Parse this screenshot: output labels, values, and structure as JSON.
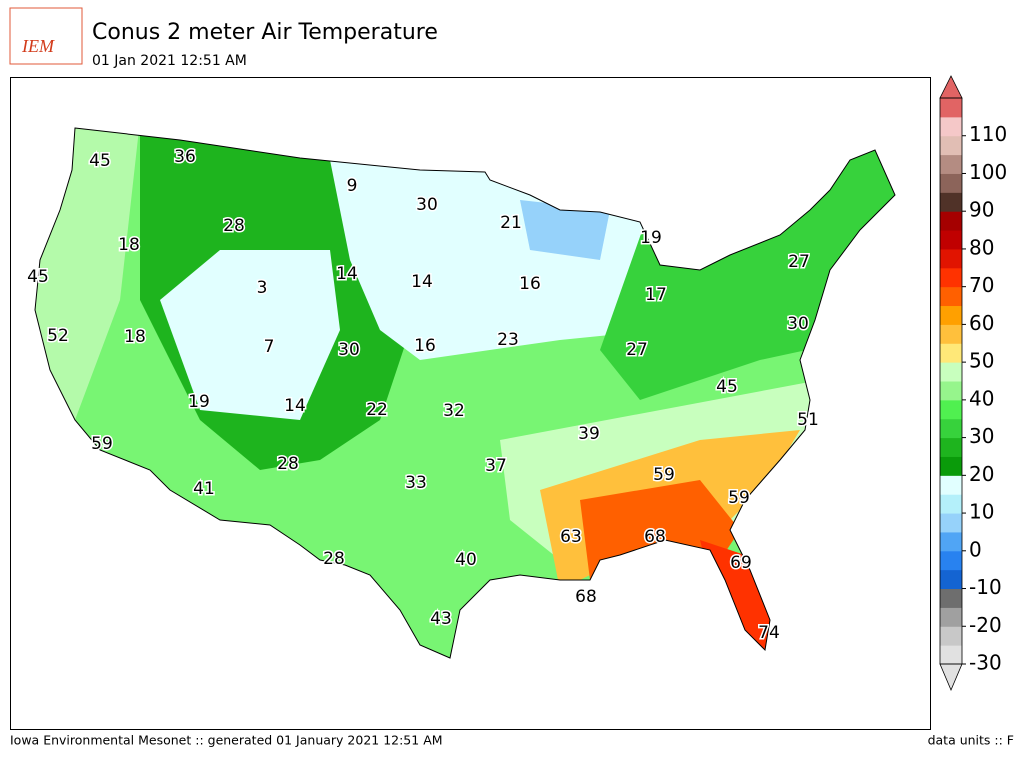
{
  "header": {
    "title": "Conus 2 meter Air Temperature",
    "subtitle": "01 Jan 2021 12:51 AM",
    "logo": "IEM"
  },
  "map": {
    "labels": [
      45,
      36,
      9,
      30,
      21,
      19,
      28,
      18,
      45,
      14,
      14,
      16,
      3,
      27,
      17,
      52,
      18,
      7,
      30,
      16,
      23,
      27,
      30,
      45,
      19,
      14,
      22,
      32,
      39,
      51,
      59,
      28,
      41,
      33,
      37,
      59,
      59,
      63,
      68,
      28,
      40,
      69,
      68,
      43,
      74
    ]
  },
  "colorbar": {
    "range": [
      -30,
      120
    ],
    "ticks": [
      -30,
      -20,
      -10,
      0,
      10,
      20,
      30,
      40,
      50,
      60,
      70,
      80,
      90,
      100,
      110
    ],
    "colors": [
      "#e1e1e1",
      "#c8c8c8",
      "#a0a0a0",
      "#6e6e6e",
      "#1464d2",
      "#2882f0",
      "#50a5f5",
      "#96d2fa",
      "#b4f0fa",
      "#e1ffff",
      "#0a9b0a",
      "#1eb41e",
      "#37d23c",
      "#50f050",
      "#96f58c",
      "#c8ffbe",
      "#ffe878",
      "#ffc03c",
      "#ffa000",
      "#ff6000",
      "#ff3200",
      "#e11400",
      "#c00000",
      "#a50000",
      "#503228",
      "#8c645a",
      "#b48c82",
      "#e1beb4",
      "#f5c8c8",
      "#e16464"
    ]
  },
  "footer": {
    "left": "Iowa Environmental Mesonet :: generated 01 January 2021 12:51 AM",
    "right": "data units :: F"
  }
}
